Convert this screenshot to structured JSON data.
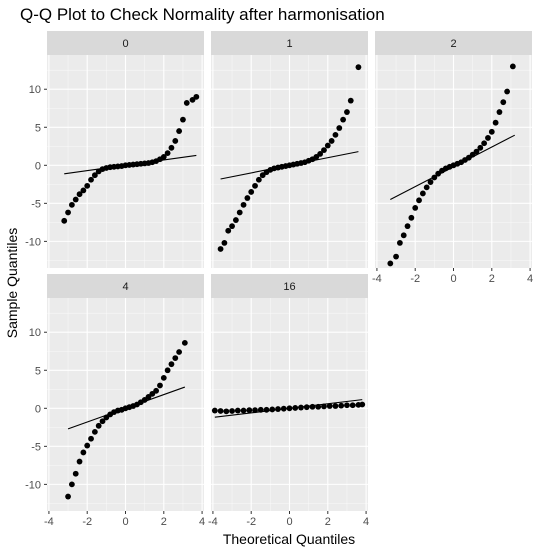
{
  "chart_data": {
    "type": "scatter",
    "title": "Q-Q Plot to Check Normality after harmonisation",
    "xlabel": "Theoretical Quantiles",
    "ylabel": "Sample Quantiles",
    "xlim": [
      -4.1,
      4.1
    ],
    "ylim": [
      -13.5,
      14.5
    ],
    "xticks": [
      -4,
      -2,
      0,
      2,
      4
    ],
    "yticks": [
      -10,
      -5,
      0,
      5,
      10
    ],
    "grid": true,
    "colors": {
      "panel_bg": "#ebebeb",
      "grid_major": "#ffffff",
      "strip_bg": "#d9d9d9",
      "points": "#000000",
      "line": "#000000"
    },
    "facets": [
      {
        "label": "0",
        "x_range": [
          -3.2,
          3.7
        ],
        "line": {
          "slope": 0.35,
          "intercept": 0.0
        },
        "series": [
          {
            "x": [
              -3.2,
              -3.0,
              -2.8,
              -2.6,
              -2.4,
              -2.2,
              -2.0,
              -1.8,
              -1.6,
              -1.4,
              -1.2,
              -1.0,
              -0.8,
              -0.6,
              -0.4,
              -0.2,
              0.0,
              0.2,
              0.4,
              0.6,
              0.8,
              1.0,
              1.2,
              1.4,
              1.6,
              1.8,
              2.0,
              2.2,
              2.4,
              2.6,
              2.8,
              3.0,
              3.2,
              3.5,
              3.7
            ],
            "y": [
              -7.3,
              -6.2,
              -5.2,
              -4.5,
              -3.8,
              -3.3,
              -2.7,
              -1.9,
              -1.3,
              -0.8,
              -0.5,
              -0.35,
              -0.25,
              -0.2,
              -0.15,
              -0.1,
              0.0,
              0.05,
              0.1,
              0.15,
              0.2,
              0.25,
              0.3,
              0.4,
              0.55,
              0.8,
              1.1,
              1.6,
              2.3,
              3.2,
              4.5,
              6.0,
              8.2,
              8.6,
              9.0
            ]
          }
        ]
      },
      {
        "label": "1",
        "x_range": [
          -3.6,
          3.6
        ],
        "line": {
          "slope": 0.5,
          "intercept": 0.0
        },
        "series": [
          {
            "x": [
              -3.6,
              -3.4,
              -3.2,
              -3.0,
              -2.8,
              -2.6,
              -2.4,
              -2.2,
              -2.0,
              -1.8,
              -1.6,
              -1.4,
              -1.2,
              -1.0,
              -0.8,
              -0.6,
              -0.4,
              -0.2,
              0.0,
              0.2,
              0.4,
              0.6,
              0.8,
              1.0,
              1.2,
              1.4,
              1.6,
              1.8,
              2.0,
              2.2,
              2.4,
              2.6,
              2.8,
              3.0,
              3.2,
              3.6
            ],
            "y": [
              -11.0,
              -10.2,
              -8.6,
              -8.0,
              -7.2,
              -6.2,
              -5.2,
              -4.3,
              -3.5,
              -2.7,
              -1.9,
              -1.3,
              -0.9,
              -0.6,
              -0.4,
              -0.3,
              -0.2,
              -0.1,
              0.0,
              0.1,
              0.2,
              0.3,
              0.4,
              0.6,
              0.8,
              1.1,
              1.5,
              2.0,
              2.6,
              3.2,
              4.0,
              4.9,
              6.0,
              7.0,
              8.5,
              12.9
            ]
          }
        ]
      },
      {
        "label": "2",
        "x_range": [
          -3.3,
          3.2
        ],
        "line": {
          "slope": 1.3,
          "intercept": -0.2
        },
        "series": [
          {
            "x": [
              -3.3,
              -3.0,
              -2.8,
              -2.6,
              -2.4,
              -2.2,
              -2.0,
              -1.8,
              -1.6,
              -1.4,
              -1.2,
              -1.0,
              -0.8,
              -0.6,
              -0.4,
              -0.2,
              0.0,
              0.2,
              0.4,
              0.6,
              0.8,
              1.0,
              1.2,
              1.4,
              1.6,
              1.8,
              2.0,
              2.2,
              2.4,
              2.6,
              2.8,
              3.1
            ],
            "y": [
              -12.9,
              -12.0,
              -10.2,
              -9.2,
              -8.0,
              -6.9,
              -5.6,
              -4.6,
              -3.7,
              -2.9,
              -2.2,
              -1.6,
              -1.1,
              -0.7,
              -0.4,
              -0.2,
              0.0,
              0.2,
              0.4,
              0.7,
              1.0,
              1.4,
              1.8,
              2.3,
              2.9,
              3.6,
              4.4,
              5.6,
              7.0,
              8.3,
              9.7,
              13.0
            ]
          }
        ]
      },
      {
        "label": "4",
        "x_range": [
          -3.0,
          3.1
        ],
        "line": {
          "slope": 0.9,
          "intercept": 0.0
        },
        "series": [
          {
            "x": [
              -3.0,
              -2.8,
              -2.6,
              -2.4,
              -2.2,
              -2.0,
              -1.8,
              -1.6,
              -1.4,
              -1.2,
              -1.0,
              -0.8,
              -0.6,
              -0.4,
              -0.2,
              0.0,
              0.2,
              0.4,
              0.6,
              0.8,
              1.0,
              1.2,
              1.4,
              1.6,
              1.8,
              2.0,
              2.2,
              2.4,
              2.6,
              2.8,
              3.1
            ],
            "y": [
              -11.6,
              -10.0,
              -8.6,
              -7.0,
              -5.8,
              -4.9,
              -4.0,
              -3.1,
              -2.3,
              -1.7,
              -1.2,
              -0.8,
              -0.5,
              -0.3,
              -0.2,
              0.0,
              0.15,
              0.3,
              0.5,
              0.8,
              1.1,
              1.5,
              1.9,
              2.3,
              3.0,
              4.0,
              5.0,
              5.8,
              6.6,
              7.4,
              8.6
            ]
          }
        ]
      },
      {
        "label": "16",
        "x_range": [
          -3.9,
          3.8
        ],
        "line": {
          "slope": 0.3,
          "intercept": 0.0
        },
        "series": [
          {
            "x": [
              -3.9,
              -3.6,
              -3.3,
              -3.0,
              -2.7,
              -2.4,
              -2.1,
              -1.8,
              -1.5,
              -1.2,
              -0.9,
              -0.6,
              -0.3,
              0.0,
              0.3,
              0.6,
              0.9,
              1.2,
              1.5,
              1.8,
              2.1,
              2.4,
              2.7,
              3.0,
              3.3,
              3.6,
              3.8
            ],
            "y": [
              -0.3,
              -0.35,
              -0.4,
              -0.35,
              -0.3,
              -0.3,
              -0.25,
              -0.25,
              -0.2,
              -0.2,
              -0.15,
              -0.1,
              -0.05,
              0.0,
              0.05,
              0.1,
              0.15,
              0.2,
              0.2,
              0.25,
              0.3,
              0.3,
              0.35,
              0.4,
              0.4,
              0.45,
              0.5
            ]
          }
        ]
      }
    ]
  }
}
